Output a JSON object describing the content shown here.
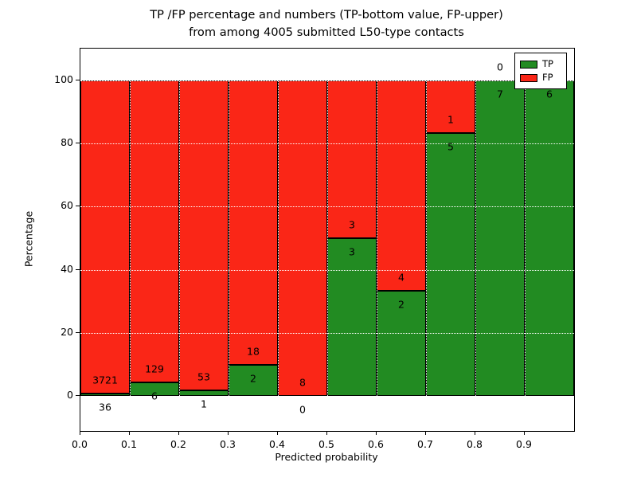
{
  "figure": {
    "title_line1": "TP /FP percentage and numbers (TP-bottom value, FP-upper)",
    "title_line2": "from among 4005 submitted L50-type contacts",
    "xlabel": "Predicted probability",
    "ylabel": "Percentage"
  },
  "legend": {
    "position": "upper right",
    "entries": [
      {
        "label": "TP",
        "color": "#228b22"
      },
      {
        "label": "FP",
        "color": "#fa2617"
      }
    ]
  },
  "chart_data": {
    "type": "bar",
    "stacked": true,
    "title": "TP /FP percentage and numbers (TP-bottom value, FP-upper) from among 4005 submitted L50-type contacts",
    "xlabel": "Predicted probability",
    "ylabel": "Percentage",
    "total_contacts": 4005,
    "xlim": [
      0.0,
      1.0
    ],
    "ylim": [
      -11,
      110
    ],
    "x_ticks": [
      "0.0",
      "0.1",
      "0.2",
      "0.3",
      "0.4",
      "0.5",
      "0.6",
      "0.7",
      "0.8",
      "0.9"
    ],
    "y_ticks": [
      0,
      20,
      40,
      60,
      80,
      100
    ],
    "grid": {
      "visible": true,
      "color": "#ffffff",
      "style": "dotted"
    },
    "series": [
      {
        "name": "TP",
        "color": "#228b22",
        "position": "bottom"
      },
      {
        "name": "FP",
        "color": "#fa2617",
        "position": "top"
      }
    ],
    "bins": [
      {
        "x_range": [
          0.0,
          0.1
        ],
        "tp": 36,
        "fp": 3721,
        "tp_pct": 0.96,
        "fp_pct": 99.04
      },
      {
        "x_range": [
          0.1,
          0.2
        ],
        "tp": 6,
        "fp": 129,
        "tp_pct": 4.44,
        "fp_pct": 95.56
      },
      {
        "x_range": [
          0.2,
          0.3
        ],
        "tp": 1,
        "fp": 53,
        "tp_pct": 1.85,
        "fp_pct": 98.15
      },
      {
        "x_range": [
          0.3,
          0.4
        ],
        "tp": 2,
        "fp": 18,
        "tp_pct": 10.0,
        "fp_pct": 90.0
      },
      {
        "x_range": [
          0.4,
          0.5
        ],
        "tp": 0,
        "fp": 8,
        "tp_pct": 0.0,
        "fp_pct": 100.0
      },
      {
        "x_range": [
          0.5,
          0.6
        ],
        "tp": 3,
        "fp": 3,
        "tp_pct": 50.0,
        "fp_pct": 50.0
      },
      {
        "x_range": [
          0.6,
          0.7
        ],
        "tp": 2,
        "fp": 4,
        "tp_pct": 33.33,
        "fp_pct": 66.67
      },
      {
        "x_range": [
          0.7,
          0.8
        ],
        "tp": 5,
        "fp": 1,
        "tp_pct": 83.33,
        "fp_pct": 16.67
      },
      {
        "x_range": [
          0.8,
          0.9
        ],
        "tp": 7,
        "fp": 0,
        "tp_pct": 100.0,
        "fp_pct": 0.0
      },
      {
        "x_range": [
          0.9,
          1.0
        ],
        "tp": 6,
        "fp": 0,
        "tp_pct": 100.0,
        "fp_pct": 0.0
      }
    ]
  }
}
